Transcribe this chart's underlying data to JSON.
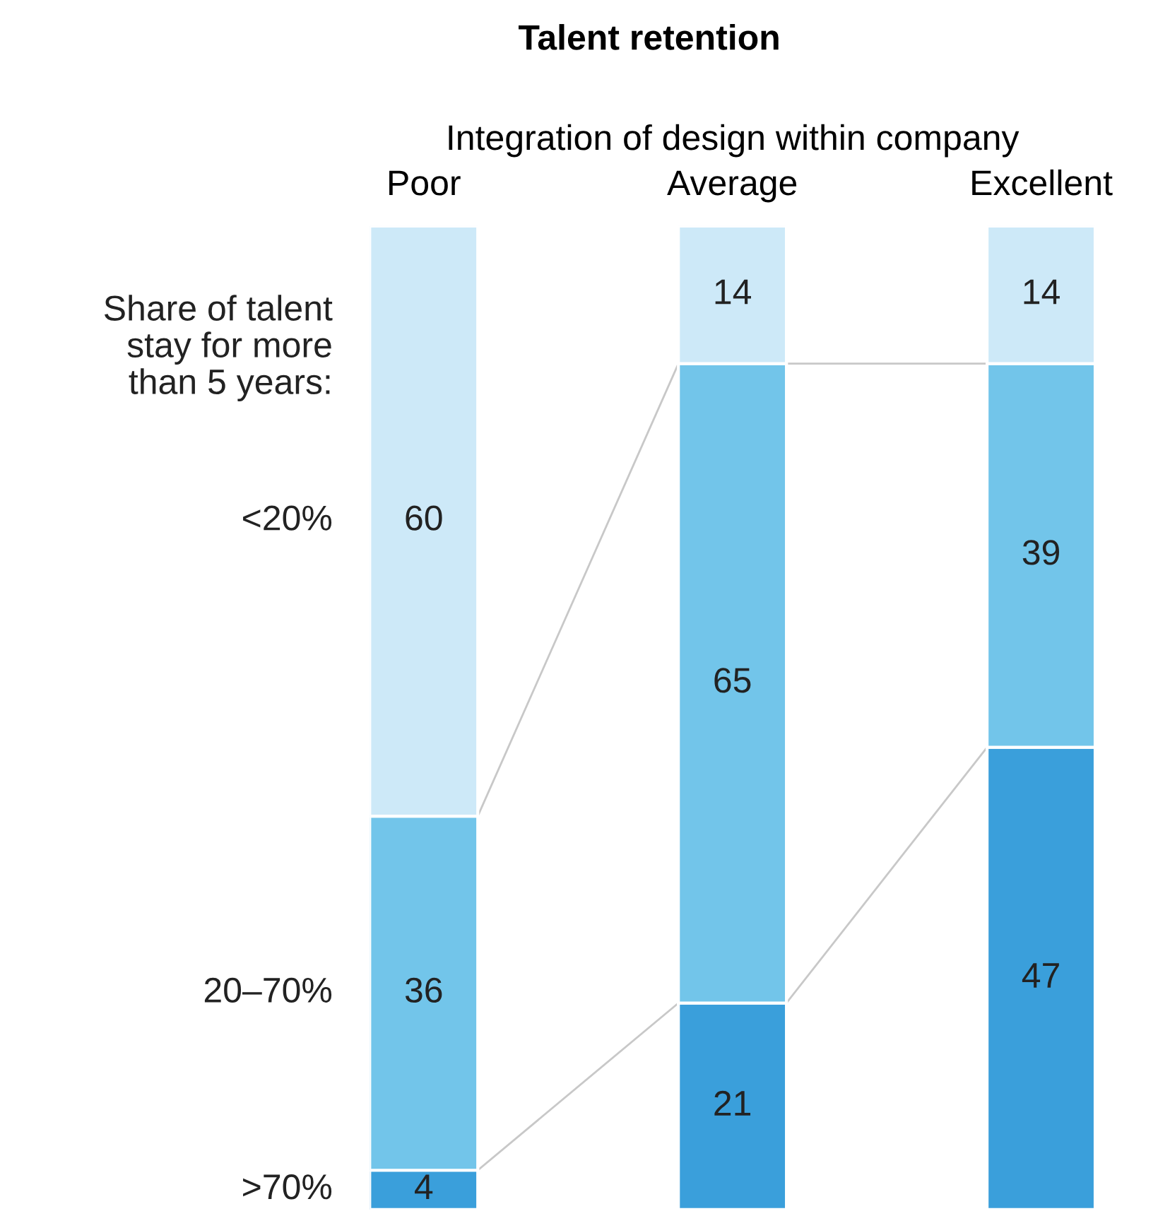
{
  "chart_data": {
    "type": "bar",
    "stacked": true,
    "title": "Talent retention",
    "xlabel": "Integration of design within company",
    "legend_title": "Share of talent\nstay for more\nthan 5 years:",
    "categories": [
      "Poor",
      "Average",
      "Excellent"
    ],
    "series": [
      {
        "name": ">70%",
        "color": "#3a9fdb",
        "values": [
          4,
          21,
          47
        ]
      },
      {
        "name": "20–70%",
        "color": "#72c5ea",
        "values": [
          36,
          65,
          39
        ]
      },
      {
        "name": "<20%",
        "color": "#cde9f8",
        "values": [
          60,
          14,
          14
        ]
      }
    ],
    "data_labels": true,
    "grid": false
  }
}
